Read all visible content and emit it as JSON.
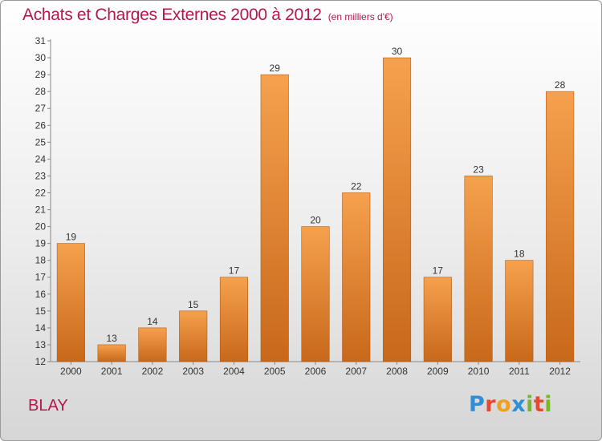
{
  "title": "Achats et Charges Externes 2000 à 2012",
  "subtitle": "(en milliers d'€)",
  "commune": "BLAY",
  "logo": {
    "text": "Proxiti",
    "letters": [
      {
        "ch": "P",
        "color": "#2e8fd6"
      },
      {
        "ch": "r",
        "color": "#e8482f"
      },
      {
        "ch": "o",
        "color": "#f0a020"
      },
      {
        "ch": "x",
        "color": "#2e8fd6"
      },
      {
        "ch": "i",
        "color": "#7ab52a"
      },
      {
        "ch": "t",
        "color": "#e8482f"
      },
      {
        "ch": "i",
        "color": "#7ab52a"
      }
    ]
  },
  "chart_data": {
    "type": "bar",
    "title": "Achats et Charges Externes 2000 à 2012",
    "subtitle": "(en milliers d'€)",
    "categories": [
      "2000",
      "2001",
      "2002",
      "2003",
      "2004",
      "2005",
      "2006",
      "2007",
      "2008",
      "2009",
      "2010",
      "2011",
      "2012"
    ],
    "values": [
      19,
      13,
      14,
      15,
      17,
      29,
      20,
      22,
      30,
      17,
      23,
      18,
      28
    ],
    "ylim": [
      12,
      31
    ],
    "yticks": [
      12,
      13,
      14,
      15,
      16,
      17,
      18,
      19,
      20,
      21,
      22,
      23,
      24,
      25,
      26,
      27,
      28,
      29,
      30,
      31
    ],
    "grid": false,
    "bar_color_light": "#f5a14e",
    "bar_color_dark": "#c8681a",
    "data_labels": true
  }
}
